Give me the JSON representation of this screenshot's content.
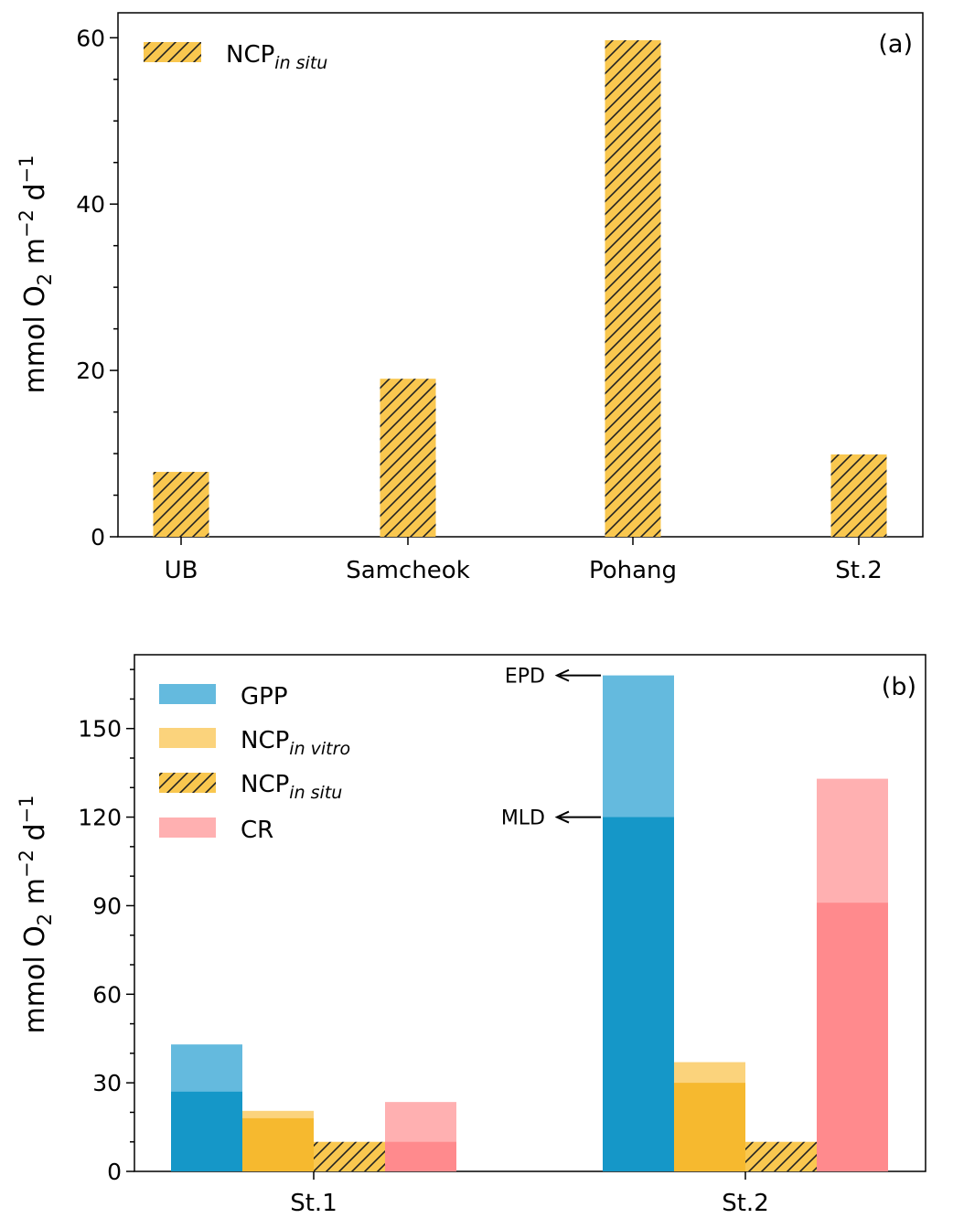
{
  "colors": {
    "ncp_in_situ": "#F9C74F",
    "hatch_line": "#222222",
    "gpp_mld": "#1597C8",
    "gpp_epd": "#64BADE",
    "ncp_in_vitro_mld": "#F6B92F",
    "ncp_in_vitro_epd": "#FBD37C",
    "cr_mld": "#FF8A8D",
    "cr_epd": "#FFB0B1"
  },
  "chart_data": [
    {
      "panel": "a",
      "type": "bar",
      "panel_label": "(a)",
      "ylabel_prefix": "mmol O",
      "ylabel_o_sub": "2",
      "ylabel_m": " m",
      "ylabel_m_sup": "−2",
      "ylabel_d": " d",
      "ylabel_d_sup": "−1",
      "ylim": [
        0,
        63
      ],
      "yticks": [
        0,
        20,
        40,
        60
      ],
      "yticks_minor": [
        5,
        10,
        15,
        25,
        30,
        35,
        45,
        50,
        55
      ],
      "categories": [
        "UB",
        "Samcheok",
        "Pohang",
        "St.2"
      ],
      "values": [
        7.8,
        19.0,
        59.7,
        9.9
      ],
      "legend": {
        "main": "NCP",
        "sub": "in situ"
      }
    },
    {
      "panel": "b",
      "type": "stacked_bar",
      "panel_label": "(b)",
      "ylabel_prefix": "mmol O",
      "ylabel_o_sub": "2",
      "ylabel_m": " m",
      "ylabel_m_sup": "−2",
      "ylabel_d": " d",
      "ylabel_d_sup": "−1",
      "ylim": [
        0,
        175
      ],
      "yticks": [
        0,
        30,
        60,
        90,
        120,
        150
      ],
      "yticks_minor": [
        10,
        20,
        40,
        50,
        70,
        80,
        100,
        110,
        130,
        140,
        160,
        170
      ],
      "categories": [
        "St.1",
        "St.2"
      ],
      "series": [
        {
          "key": "gpp",
          "legend_main": "GPP",
          "legend_sub": "",
          "mld": [
            27,
            120
          ],
          "epd": [
            43,
            168
          ]
        },
        {
          "key": "ncp_in_vitro",
          "legend_main": "NCP",
          "legend_sub": "in vitro",
          "mld": [
            18,
            30
          ],
          "epd": [
            20.5,
            37
          ]
        },
        {
          "key": "ncp_in_situ",
          "legend_main": "NCP",
          "legend_sub": "in situ",
          "mld": [
            10,
            10
          ],
          "epd": [
            10,
            10
          ]
        },
        {
          "key": "cr",
          "legend_main": "CR",
          "legend_sub": "",
          "mld": [
            10,
            91
          ],
          "epd": [
            23.5,
            133
          ]
        }
      ],
      "annotations": [
        {
          "text": "EPD",
          "value": 168
        },
        {
          "text": "MLD",
          "value": 120
        }
      ]
    }
  ]
}
